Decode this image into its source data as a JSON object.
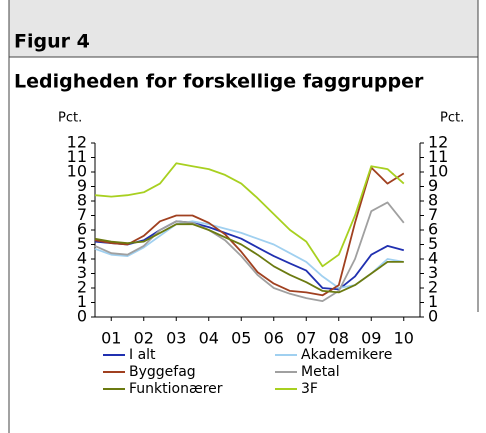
{
  "figure_label": "Figur 4",
  "chart_data": {
    "type": "line",
    "title": "Ledigheden for forskellige faggrupper",
    "y_label": "Pct.",
    "y2_label": "Pct.",
    "x": [
      2001,
      2001.5,
      2002,
      2002.5,
      2003,
      2003.5,
      2004,
      2004.5,
      2005,
      2005.5,
      2006,
      2006.5,
      2007,
      2007.5,
      2008,
      2008.5,
      2009,
      2009.5,
      2010,
      2010.5
    ],
    "xlim": [
      2001,
      2011
    ],
    "xticks": [
      {
        "value": 2001.5,
        "label": "01"
      },
      {
        "value": 2002.5,
        "label": "02"
      },
      {
        "value": 2003.5,
        "label": "03"
      },
      {
        "value": 2004.5,
        "label": "04"
      },
      {
        "value": 2005.5,
        "label": "05"
      },
      {
        "value": 2006.5,
        "label": "06"
      },
      {
        "value": 2007.5,
        "label": "07"
      },
      {
        "value": 2008.5,
        "label": "08"
      },
      {
        "value": 2009.5,
        "label": "09"
      },
      {
        "value": 2010.5,
        "label": "10"
      }
    ],
    "ylim": [
      0,
      12
    ],
    "yticks": [
      0,
      1,
      2,
      3,
      4,
      5,
      6,
      7,
      8,
      9,
      10,
      11,
      12
    ],
    "y2lim": [
      0,
      12
    ],
    "y2ticks": [
      0,
      1,
      2,
      3,
      4,
      5,
      6,
      7,
      8,
      9,
      10,
      11,
      12
    ],
    "series": [
      {
        "name": "I alt",
        "color": "#2030b0",
        "values": [
          5.2,
          5.1,
          5.0,
          5.3,
          6.0,
          6.6,
          6.5,
          6.2,
          5.8,
          5.4,
          4.8,
          4.2,
          3.7,
          3.2,
          2.0,
          1.9,
          2.8,
          4.3,
          4.9,
          4.6
        ]
      },
      {
        "name": "Akademikere",
        "color": "#a0d0f0",
        "values": [
          4.7,
          4.3,
          4.2,
          4.8,
          5.6,
          6.4,
          6.6,
          6.4,
          6.1,
          5.8,
          5.4,
          5.0,
          4.4,
          3.8,
          2.8,
          2.0,
          2.2,
          3.0,
          4.0,
          3.8
        ]
      },
      {
        "name": "Byggefag",
        "color": "#a04020",
        "values": [
          5.3,
          5.1,
          5.0,
          5.6,
          6.6,
          7.0,
          7.0,
          6.5,
          5.7,
          4.5,
          3.1,
          2.3,
          1.8,
          1.7,
          1.5,
          2.2,
          6.5,
          10.3,
          9.2,
          9.9
        ]
      },
      {
        "name": "Metal",
        "color": "#a0a0a0",
        "values": [
          4.9,
          4.4,
          4.3,
          4.9,
          6.0,
          6.6,
          6.5,
          6.0,
          5.3,
          4.2,
          2.9,
          2.0,
          1.6,
          1.3,
          1.1,
          1.8,
          4.0,
          7.3,
          7.9,
          6.5
        ]
      },
      {
        "name": "Funktionærer",
        "color": "#6b7a10",
        "values": [
          5.4,
          5.2,
          5.1,
          5.2,
          5.8,
          6.4,
          6.4,
          6.0,
          5.5,
          5.0,
          4.3,
          3.5,
          2.9,
          2.4,
          1.8,
          1.7,
          2.2,
          3.0,
          3.8,
          3.8
        ]
      },
      {
        "name": "3F",
        "color": "#a8d020",
        "values": [
          8.4,
          8.3,
          8.4,
          8.6,
          9.2,
          10.6,
          10.4,
          10.2,
          9.8,
          9.2,
          8.2,
          7.1,
          6.0,
          5.2,
          3.5,
          4.3,
          7.0,
          10.4,
          10.2,
          9.2
        ]
      }
    ]
  }
}
